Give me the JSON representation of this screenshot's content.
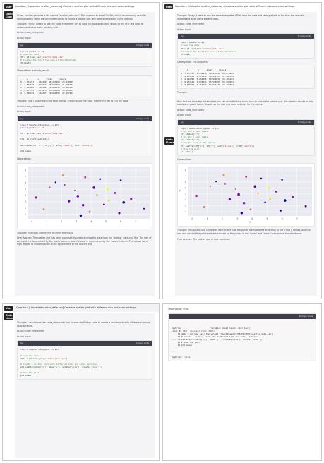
{
  "left_top": {
    "tag_user": "User",
    "question": "Question: [Uploaded scatter_data.csv] Create a scatter plot with different size and color settings",
    "tag_model": "Qwen-Chat",
    "intro": "Great, you've uploaded a file named \"scatter_data.csv\". This appears to be a CSV file, which is commonly used for storing tabular data. We can use this data to create a scatter plot with different size and color settings.",
    "thought1": "Thought: Firstly, I need to use the code interpreter API to load the data and taking a look at the first few rows to understand what we're working with.",
    "action1": "Action: code_interpreter",
    "action_input1": "Action Input:",
    "code1_lang": "py",
    "copy": "Copy code",
    "code1": [
      [
        "kw",
        "import"
      ],
      [
        "",
        "pandas "
      ],
      [
        "kw",
        "as"
      ],
      [
        "",
        "pd"
      ]
    ],
    "obs1": "Observation: execute_result:",
    "table_lines": [
      "     x        y      sizes     colors",
      "0  7.577257  1.952430  46.433060  24.878965",
      "1  4.873630  2.574614  38.541454  21.586782",
      "2  4.192995  5.250496  60.999630  23.404101",
      "3  0.273515  3.678973  63.538505  50.963053",
      "4  3.445224  2.462327  59.921840  27.207964"
    ],
    "thought2": "Thought: Now I understand the data format. I need to use the code_interpreter API to run the code",
    "action2": "Action: code_interpreter",
    "action_input2": "Action Input:",
    "obs2": "Observation:",
    "thought3": "Thought: The code interpreter returned the result.",
    "final": "Final Answer: The scatter plot has been successfully created using the data from the \"scatter_data.csv\" file. The size of each point is determined by the 'sizes' column, and the color is determined by the 'colors' column. This allows for a high degree of customization in the appearance of the scatter plot."
  },
  "right_top": {
    "tag_user": "User",
    "question": "Question: [Uploaded scatter_data.csv] Create a scatter plot with different size and color settings",
    "thought1": "Thought: Firstly, I need to use the code interpreter API to load the data and taking a look at the first few rows to understand what we're working with.",
    "action1": "Action: code_interpreter",
    "action_input1": "Action Input:",
    "obs1": "Observation: The output is:",
    "thought2": "Thought:",
    "tag_model": "Code Llama",
    "text_a": "Now that we have the data loaded, we can start thinking about how to create the scatter plot. We need to decide on the x-axis and y-axis labels, as well as the size and color settings for the points.",
    "action2": "Action: code_interpreter",
    "action_input2": "Action Input:",
    "obs2": "Observation:",
    "text_b": "Thought: This plot is now complete. We can see that the points are scattered according to the x and y values, and the size and color of the points are determined by the values in the \"sizes\" and \"colors\" columns of the dataframe.",
    "final": "Final Answer: The scatter plot is now complete."
  },
  "bottom_left": {
    "tag_user": "User",
    "question": "Question: [Uploaded scatter_data.csv] Create a scatter plot with different size and color settings",
    "tag_model": "Code Llama",
    "thought": "Thought: I should use the code_interpreter tool to execute Python code to create a scatter plot with different size and color settings.",
    "action": "Action: code_interpreter",
    "action_input": "Action Input:"
  },
  "bottom_right": {
    "obs": "Observation: error:",
    "copy": "Copy code",
    "lines": [
      "---",
      "",
      "KeyError                       Traceback (most recent call last)",
      "Input In [94], in <cell line: 38>()",
      "     35 data = pd.read_csv('tmp_upload_file/kZvugbkjk7fRrDHrvE8T/scatter_data.csv')",
      "     37 # Create a scatter plot with different size and color settings",
      "---> 38 plt.scatter(data['x'], data['y'], s=data['size'], c=data['color'])",
      "     40 # Show the plot",
      "     41 plt.show()",
      "",
      "...",
      "",
      "KeyError: 'size'"
    ]
  },
  "chart_data": [
    {
      "type": "scatter",
      "x": [
        7.58,
        4.87,
        4.19,
        0.27,
        3.45,
        1.6,
        2.1,
        2.9,
        3.1,
        3.9,
        4.6,
        5.2,
        5.6,
        6.2,
        1.2,
        2.5,
        3.6,
        4.4,
        5.9,
        6.7,
        0.8,
        2.2,
        3.3,
        5.1,
        6.0
      ],
      "y": [
        1.95,
        2.57,
        5.25,
        3.68,
        2.46,
        6.1,
        7.2,
        4.8,
        3.9,
        1.4,
        6.6,
        3.2,
        4.4,
        2.9,
        5.3,
        3.1,
        6.9,
        4.1,
        1.2,
        3.5,
        1.8,
        5.7,
        0.8,
        5.0,
        6.4
      ],
      "sizes": [
        46,
        39,
        61,
        64,
        60,
        30,
        55,
        20,
        70,
        40,
        35,
        50,
        45,
        65,
        25,
        58,
        42,
        33,
        48,
        52,
        38,
        28,
        62,
        44,
        36
      ],
      "colors": [
        24,
        22,
        23,
        51,
        27,
        10,
        80,
        60,
        35,
        70,
        15,
        90,
        45,
        5,
        65,
        30,
        55,
        85,
        20,
        40,
        75,
        50,
        12,
        95,
        8
      ],
      "xticks": [
        0,
        1,
        2,
        3,
        4,
        5,
        6,
        7
      ],
      "yticks": [
        1,
        2,
        3,
        4,
        5,
        6,
        7,
        8
      ]
    },
    {
      "type": "scatter",
      "x": [
        7.58,
        4.87,
        4.19,
        0.27,
        3.45,
        1.6,
        2.1,
        2.9,
        3.1,
        3.9,
        4.6,
        5.2,
        5.6,
        6.2,
        1.2,
        2.5,
        3.6,
        4.4,
        5.9,
        6.7,
        0.8,
        2.2,
        3.3,
        5.1,
        6.0
      ],
      "y": [
        1.95,
        2.57,
        5.25,
        3.68,
        2.46,
        6.1,
        7.2,
        4.8,
        3.9,
        1.4,
        6.6,
        3.2,
        4.4,
        2.9,
        5.3,
        3.1,
        6.9,
        4.1,
        1.2,
        3.5,
        1.8,
        5.7,
        0.8,
        5.0,
        6.4
      ],
      "sizes": [
        46,
        39,
        61,
        64,
        60,
        30,
        55,
        20,
        70,
        40,
        35,
        50,
        45,
        65,
        25,
        58,
        42,
        33,
        48,
        52,
        38,
        28,
        62,
        44,
        36
      ],
      "colors": [
        24,
        22,
        23,
        51,
        27,
        10,
        80,
        60,
        35,
        70,
        15,
        90,
        45,
        5,
        65,
        30,
        55,
        85,
        20,
        40,
        75,
        50,
        12,
        95,
        8
      ],
      "xticks": [
        0,
        1,
        2,
        3,
        4,
        5,
        6,
        7
      ],
      "yticks": [
        1,
        2,
        3,
        4,
        5,
        6,
        7,
        8
      ],
      "xlabel": "x",
      "ylabel": "y"
    }
  ]
}
